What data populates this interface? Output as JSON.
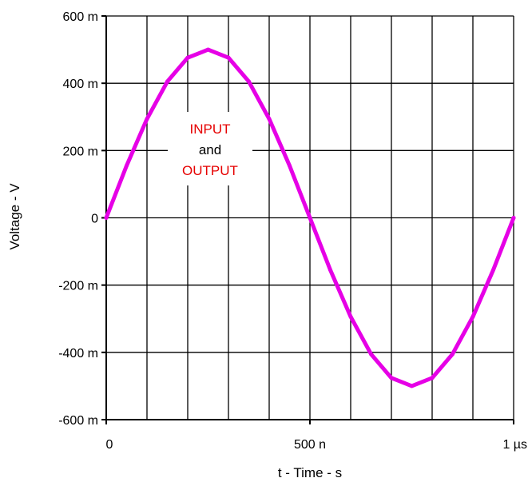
{
  "chart_data": {
    "type": "line",
    "xlabel": "t - Time - s",
    "ylabel": "Voltage - V",
    "xlim": [
      0,
      1e-06
    ],
    "ylim": [
      -0.6,
      0.6
    ],
    "x_ticks": [
      {
        "value": 0,
        "label": "0"
      },
      {
        "value": 5e-07,
        "label": "500 n"
      },
      {
        "value": 1e-06,
        "label": "1 µs"
      }
    ],
    "y_ticks": [
      {
        "value": 0.6,
        "label": "600 m"
      },
      {
        "value": 0.4,
        "label": "400 m"
      },
      {
        "value": 0.2,
        "label": "200 m"
      },
      {
        "value": 0,
        "label": "0"
      },
      {
        "value": -0.2,
        "label": "-200 m"
      },
      {
        "value": -0.4,
        "label": "-400 m"
      },
      {
        "value": -0.6,
        "label": "-600 m"
      }
    ],
    "x_grid": [
      0,
      1e-07,
      2e-07,
      3e-07,
      4e-07,
      5e-07,
      6e-07,
      7e-07,
      8e-07,
      9e-07,
      1e-06
    ],
    "y_grid": [
      -0.6,
      -0.4,
      -0.2,
      0,
      0.2,
      0.4,
      0.6
    ],
    "grid": true,
    "annotation": {
      "line1": "INPUT",
      "line2": "and",
      "line3": "OUTPUT"
    },
    "series": [
      {
        "color": "#e600e6",
        "x": [
          0,
          5e-08,
          1e-07,
          1.5e-07,
          2e-07,
          2.5e-07,
          3e-07,
          3.5e-07,
          4e-07,
          4.5e-07,
          5e-07,
          5.5e-07,
          6e-07,
          6.5e-07,
          7e-07,
          7.5e-07,
          8e-07,
          8.5e-07,
          9e-07,
          9.5e-07,
          1e-06
        ],
        "y": [
          0,
          0.155,
          0.294,
          0.405,
          0.476,
          0.5,
          0.476,
          0.405,
          0.294,
          0.155,
          0,
          -0.155,
          -0.294,
          -0.405,
          -0.476,
          -0.5,
          -0.476,
          -0.405,
          -0.294,
          -0.155,
          0
        ]
      }
    ]
  },
  "colors": {
    "grid": "#000000",
    "annotation_red": "#e60000",
    "annotation_black": "#000000"
  }
}
